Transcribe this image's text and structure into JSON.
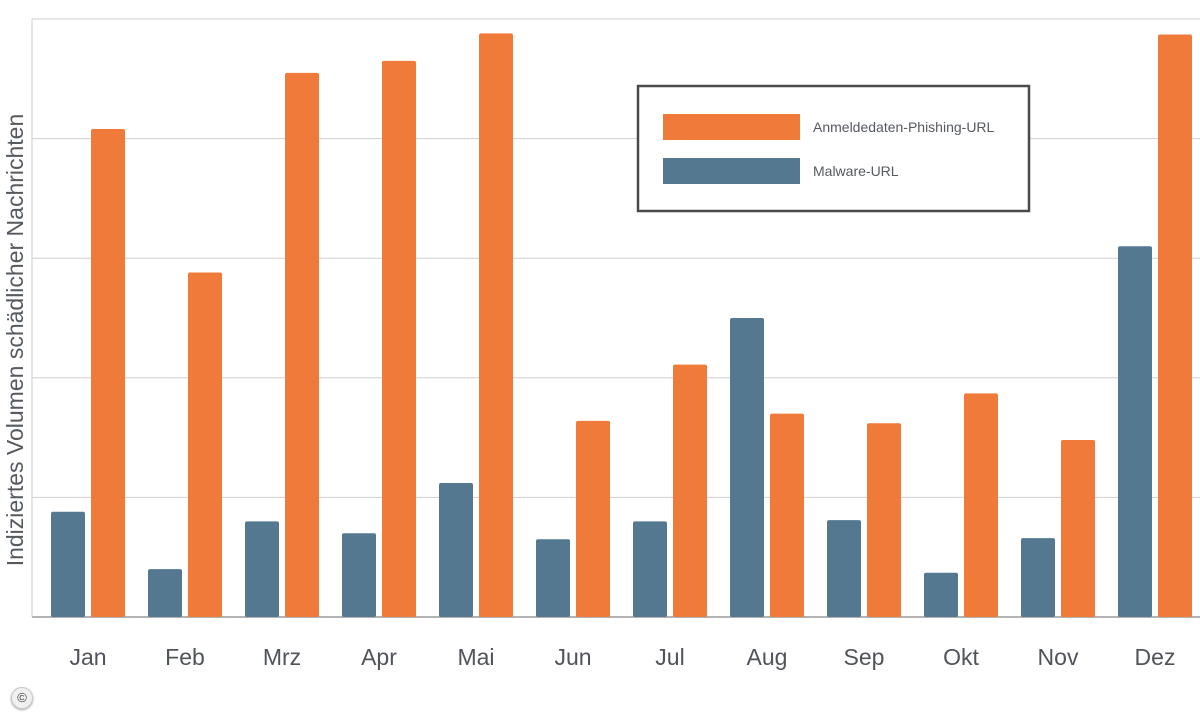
{
  "chart_data": {
    "type": "bar",
    "categories": [
      "Jan",
      "Feb",
      "Mrz",
      "Apr",
      "Mai",
      "Jun",
      "Jul",
      "Aug",
      "Sep",
      "Okt",
      "Nov",
      "Dez"
    ],
    "series": [
      {
        "name": "Malware-URL",
        "color": "#537890",
        "values": [
          0.88,
          0.4,
          0.8,
          0.7,
          1.12,
          0.65,
          0.8,
          2.5,
          0.81,
          0.37,
          0.66,
          3.1
        ]
      },
      {
        "name": "Anmeldedaten-Phishing-URL",
        "color": "#ef7a3a",
        "values": [
          4.08,
          2.88,
          4.55,
          4.65,
          4.88,
          1.64,
          2.11,
          1.7,
          1.62,
          1.87,
          1.48,
          4.87
        ]
      }
    ],
    "ylabel": "Indiziertes Volumen schädlicher Nachrichten",
    "ylim": [
      0,
      5
    ],
    "ytick_labels_shown": false,
    "grid": true,
    "legend_position": "top-right"
  },
  "legend": {
    "items": [
      {
        "label": "Anmeldedaten-Phishing-URL",
        "color": "#ef7a3a"
      },
      {
        "label": "Malware-URL",
        "color": "#537890"
      }
    ]
  },
  "copyright_symbol": "©"
}
